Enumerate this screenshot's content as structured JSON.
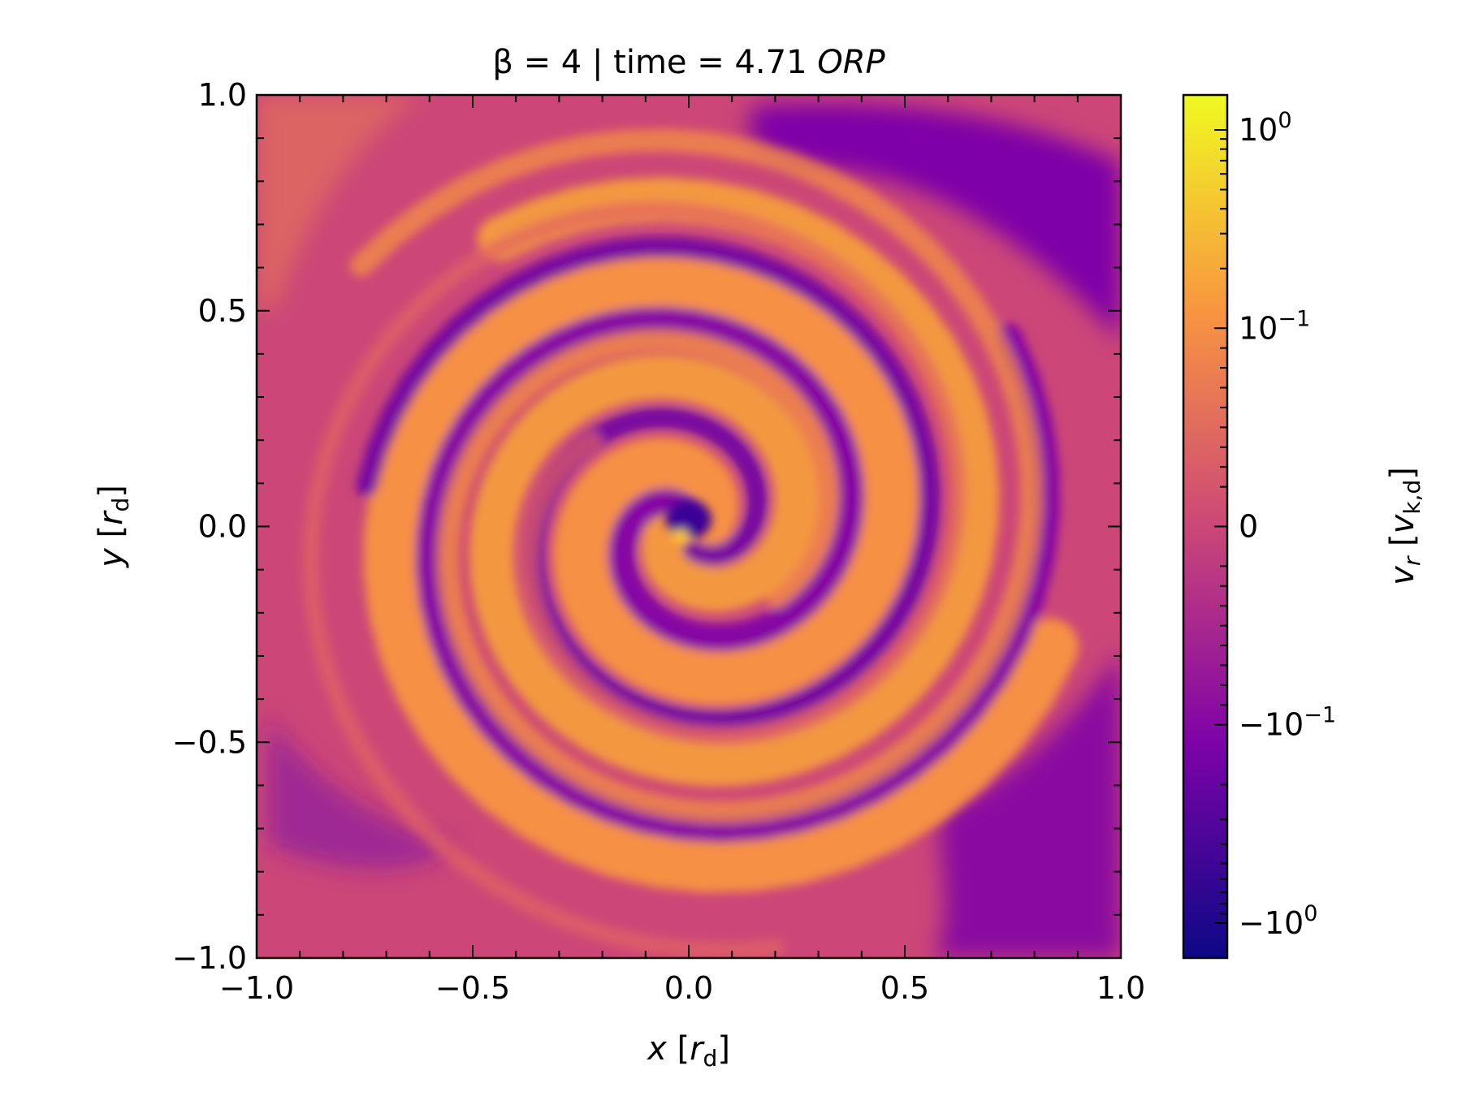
{
  "chart_data": {
    "type": "heatmap",
    "title": {
      "prefix": "β = 4 | time = 4.71 ",
      "italic": "ORP"
    },
    "xlabel": {
      "var": "x",
      "unit_var": "r",
      "unit_sub": "d"
    },
    "ylabel": {
      "var": "y",
      "unit_var": "r",
      "unit_sub": "d"
    },
    "xlim": [
      -1.0,
      1.0
    ],
    "ylim": [
      -1.0,
      1.0
    ],
    "x_ticks": [
      {
        "value": -1.0,
        "label": "−1.0"
      },
      {
        "value": -0.5,
        "label": "−0.5"
      },
      {
        "value": 0.0,
        "label": "0.0"
      },
      {
        "value": 0.5,
        "label": "0.5"
      },
      {
        "value": 1.0,
        "label": "1.0"
      }
    ],
    "y_ticks": [
      {
        "value": -1.0,
        "label": "−1.0"
      },
      {
        "value": -0.5,
        "label": "−0.5"
      },
      {
        "value": 0.0,
        "label": "0.0"
      },
      {
        "value": 0.5,
        "label": "0.5"
      },
      {
        "value": 1.0,
        "label": "1.0"
      }
    ],
    "minor_tick_step": 0.1,
    "colorbar": {
      "label": {
        "var": "v",
        "var_sub": "r",
        "unit_var": "v",
        "unit_sub": "k,d"
      },
      "scale": "symlog",
      "linthresh": 0.1,
      "range": [
        -1.5,
        1.5
      ],
      "colormap": "plasma",
      "ticks": [
        {
          "value": 1,
          "base": "10",
          "exp": "0",
          "sign": ""
        },
        {
          "value": 0.1,
          "base": "10",
          "exp": "−1",
          "sign": ""
        },
        {
          "value": 0,
          "base": "0",
          "exp": "",
          "sign": ""
        },
        {
          "value": -0.1,
          "base": "10",
          "exp": "−1",
          "sign": "−"
        },
        {
          "value": -1,
          "base": "10",
          "exp": "0",
          "sign": "−"
        }
      ]
    },
    "colors": {
      "plasma_dark": "#0d0887",
      "plasma_purple": "#7e03a8",
      "plasma_mid": "#cc4778",
      "plasma_orange": "#f89540",
      "plasma_yellow": "#f0f921"
    }
  }
}
